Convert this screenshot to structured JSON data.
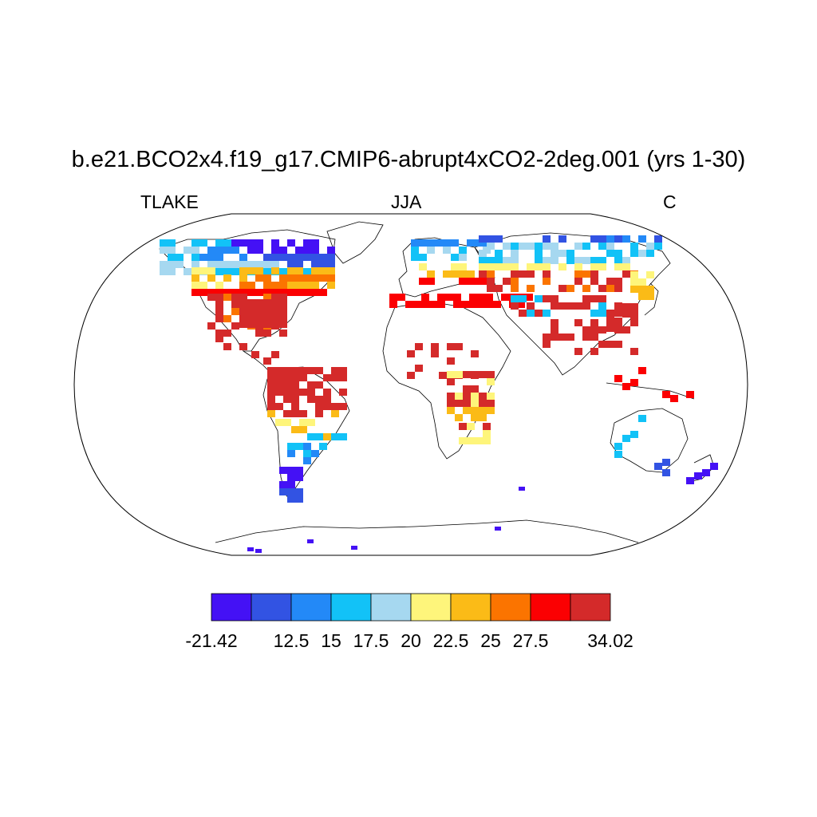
{
  "title": "b.e21.BCO2x4.f19_g17.CMIP6-abrupt4xCO2-2deg.001 (yrs 1-30)",
  "subtitle_left": "TLAKE",
  "subtitle_center": "JJA",
  "subtitle_right": "C",
  "colorbar": {
    "colors": [
      "#4411f5",
      "#3253e3",
      "#2389f7",
      "#12c2f7",
      "#a6d8f0",
      "#fef57b",
      "#fbbb17",
      "#fb7400",
      "#fb0002",
      "#d42a2a"
    ],
    "labels": [
      "-21.42",
      "12.5",
      "15",
      "17.5",
      "20",
      "22.5",
      "25",
      "27.5",
      "34.02"
    ]
  }
}
